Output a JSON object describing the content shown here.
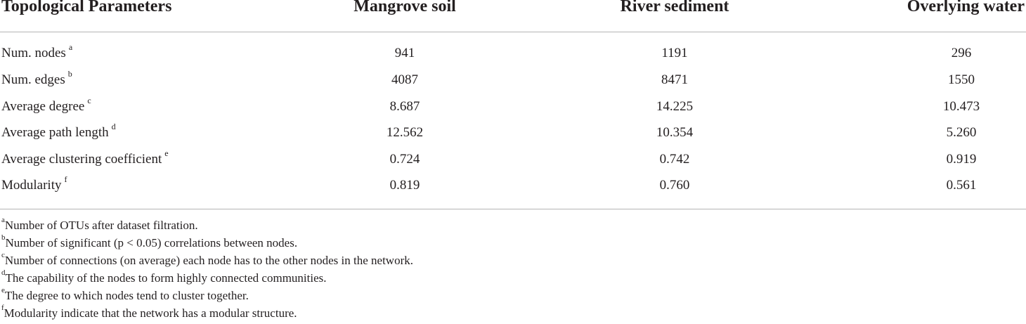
{
  "table": {
    "headers": [
      "Topological Parameters",
      "Mangrove soil",
      "River sediment",
      "Overlying water"
    ],
    "rows": [
      {
        "label": "Num. nodes",
        "sup": "a",
        "values": [
          "941",
          "1191",
          "296"
        ]
      },
      {
        "label": "Num. edges",
        "sup": "b",
        "values": [
          "4087",
          "8471",
          "1550"
        ]
      },
      {
        "label": "Average degree",
        "sup": "c",
        "values": [
          "8.687",
          "14.225",
          "10.473"
        ]
      },
      {
        "label": "Average path length",
        "sup": "d",
        "values": [
          "12.562",
          "10.354",
          "5.260"
        ]
      },
      {
        "label": "Average clustering coefficient",
        "sup": "e",
        "values": [
          "0.724",
          "0.742",
          "0.919"
        ]
      },
      {
        "label": "Modularity",
        "sup": "f",
        "values": [
          "0.819",
          "0.760",
          "0.561"
        ]
      }
    ]
  },
  "footnotes": [
    {
      "mark": "a",
      "text": "Number of OTUs after dataset filtration."
    },
    {
      "mark": "b",
      "text": "Number of significant (p < 0.05) correlations between nodes."
    },
    {
      "mark": "c",
      "text": "Number of connections (on average) each node has to the other nodes in the network."
    },
    {
      "mark": "d",
      "text": "The capability of the nodes to form highly connected communities."
    },
    {
      "mark": "e",
      "text": "The degree to which nodes tend to cluster together."
    },
    {
      "mark": "f",
      "text": "Modularity indicate that the network has a modular structure."
    }
  ]
}
